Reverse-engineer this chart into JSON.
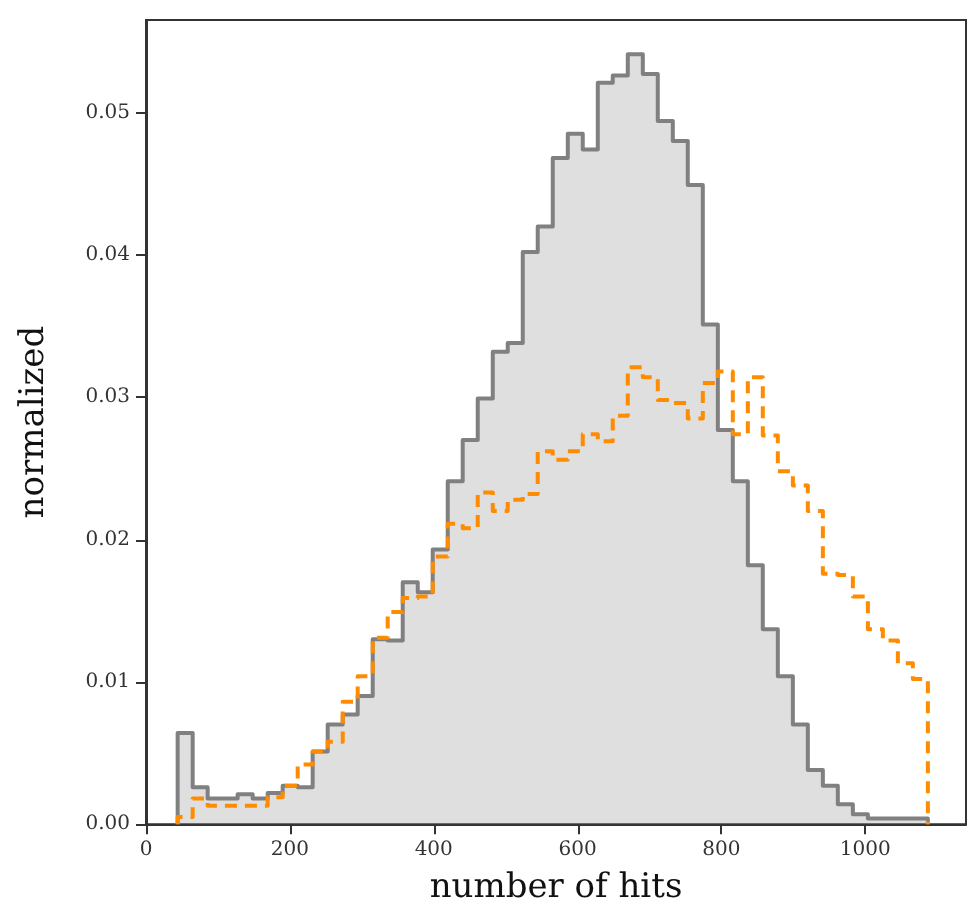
{
  "chart_data": {
    "type": "histogram",
    "xlabel": "number of hits",
    "ylabel": "normalized",
    "bins": [
      44.0,
      64.9,
      85.7,
      106.6,
      127.4,
      148.3,
      169.2,
      190.0,
      210.9,
      231.7,
      252.6,
      273.5,
      294.3,
      315.2,
      336.0,
      356.9,
      377.8,
      398.6,
      419.5,
      440.3,
      461.2,
      482.1,
      502.9,
      523.8,
      544.6,
      565.5,
      586.4,
      607.2,
      628.1,
      648.9,
      669.8,
      690.7,
      711.5,
      732.4,
      753.2,
      774.1,
      795.0,
      815.8,
      836.7,
      857.5,
      878.4,
      899.3,
      920.1,
      941.0,
      961.8,
      982.7,
      1003.6,
      1024.4,
      1045.3,
      1066.1,
      1087.0
    ],
    "series": [
      {
        "color": "#808080",
        "line_style": "solid",
        "values": [
          0.0064,
          0.0026,
          0.0018,
          0.0018,
          0.0021,
          0.0018,
          0.0022,
          0.0027,
          0.0026,
          0.0051,
          0.007,
          0.0077,
          0.009,
          0.013,
          0.0129,
          0.017,
          0.0163,
          0.0193,
          0.0241,
          0.027,
          0.0299,
          0.0332,
          0.0338,
          0.0402,
          0.042,
          0.0468,
          0.0485,
          0.0474,
          0.0521,
          0.0526,
          0.0541,
          0.0527,
          0.0494,
          0.048,
          0.0449,
          0.0351,
          0.0277,
          0.0241,
          0.0182,
          0.0137,
          0.0104,
          0.007,
          0.0038,
          0.0027,
          0.0014,
          0.0007,
          0.0004,
          0.0004,
          0.0004,
          0.0004
        ]
      },
      {
        "color": "#ff8c00",
        "line_style": "dashed",
        "values": [
          0.0005,
          0.0018,
          0.0013,
          0.0013,
          0.0013,
          0.0013,
          0.0019,
          0.0027,
          0.0042,
          0.0051,
          0.0058,
          0.0086,
          0.0104,
          0.0131,
          0.0149,
          0.0159,
          0.016,
          0.0188,
          0.0211,
          0.0208,
          0.0233,
          0.022,
          0.0228,
          0.0232,
          0.0262,
          0.0256,
          0.0262,
          0.0274,
          0.0269,
          0.0287,
          0.0321,
          0.0314,
          0.0298,
          0.0296,
          0.0285,
          0.031,
          0.0318,
          0.0274,
          0.0314,
          0.0273,
          0.0248,
          0.0238,
          0.022,
          0.0176,
          0.0175,
          0.016,
          0.0137,
          0.0129,
          0.0113,
          0.0102
        ]
      }
    ],
    "xlim": [
      0,
      1140
    ],
    "xticks": [
      0,
      200,
      400,
      600,
      800,
      1000
    ],
    "ylim": [
      0,
      0.0565
    ],
    "yticks": [
      {
        "value": 0,
        "label": "0.00"
      },
      0.01,
      0.02,
      0.03,
      0.04,
      0.05
    ],
    "grid": false
  }
}
